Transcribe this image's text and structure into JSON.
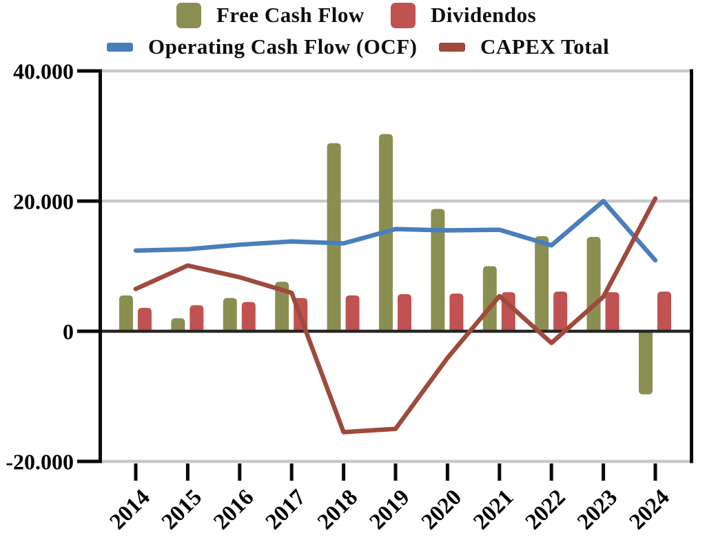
{
  "chart_data": {
    "type": "bar",
    "subtype": "combo-bar-line",
    "title": "",
    "xlabel": "",
    "ylabel": "",
    "categories": [
      "2014",
      "2015",
      "2016",
      "2017",
      "2018",
      "2019",
      "2020",
      "2021",
      "2022",
      "2023",
      "2024"
    ],
    "series": [
      {
        "name": "Free Cash Flow",
        "type": "bar",
        "color": "#8A8F51",
        "values": [
          5500,
          2000,
          5100,
          7600,
          28900,
          30300,
          18800,
          10000,
          14600,
          14500,
          -9700
        ]
      },
      {
        "name": "Dividendos",
        "type": "bar",
        "color": "#C05252",
        "values": [
          3600,
          4000,
          4500,
          5100,
          5500,
          5700,
          5800,
          6000,
          6100,
          6000,
          6100
        ]
      },
      {
        "name": "Operating Cash Flow (OCF)",
        "type": "line",
        "color": "#4A7EBB",
        "values": [
          12400,
          12600,
          13300,
          13800,
          13500,
          15700,
          15500,
          15600,
          13200,
          20000,
          10900
        ]
      },
      {
        "name": "CAPEX Total",
        "type": "line",
        "color": "#9E4A3C",
        "values": [
          6500,
          10100,
          8300,
          5900,
          -15500,
          -15000,
          -4100,
          5400,
          -1800,
          5300,
          20400
        ]
      }
    ],
    "ylim": [
      -20000,
      40000
    ],
    "ytick_values": [
      40000,
      20000,
      0,
      -20000
    ],
    "ytick_labels": [
      "40.000",
      "20.000",
      "0",
      "-20.000"
    ],
    "grid": "horizontal-gridlines-on",
    "legend_position": "top",
    "colors": {
      "gridline": "#C9C9C9",
      "zero_line": "#262626",
      "axis": "#0a0a0a",
      "text": "#000000"
    }
  }
}
